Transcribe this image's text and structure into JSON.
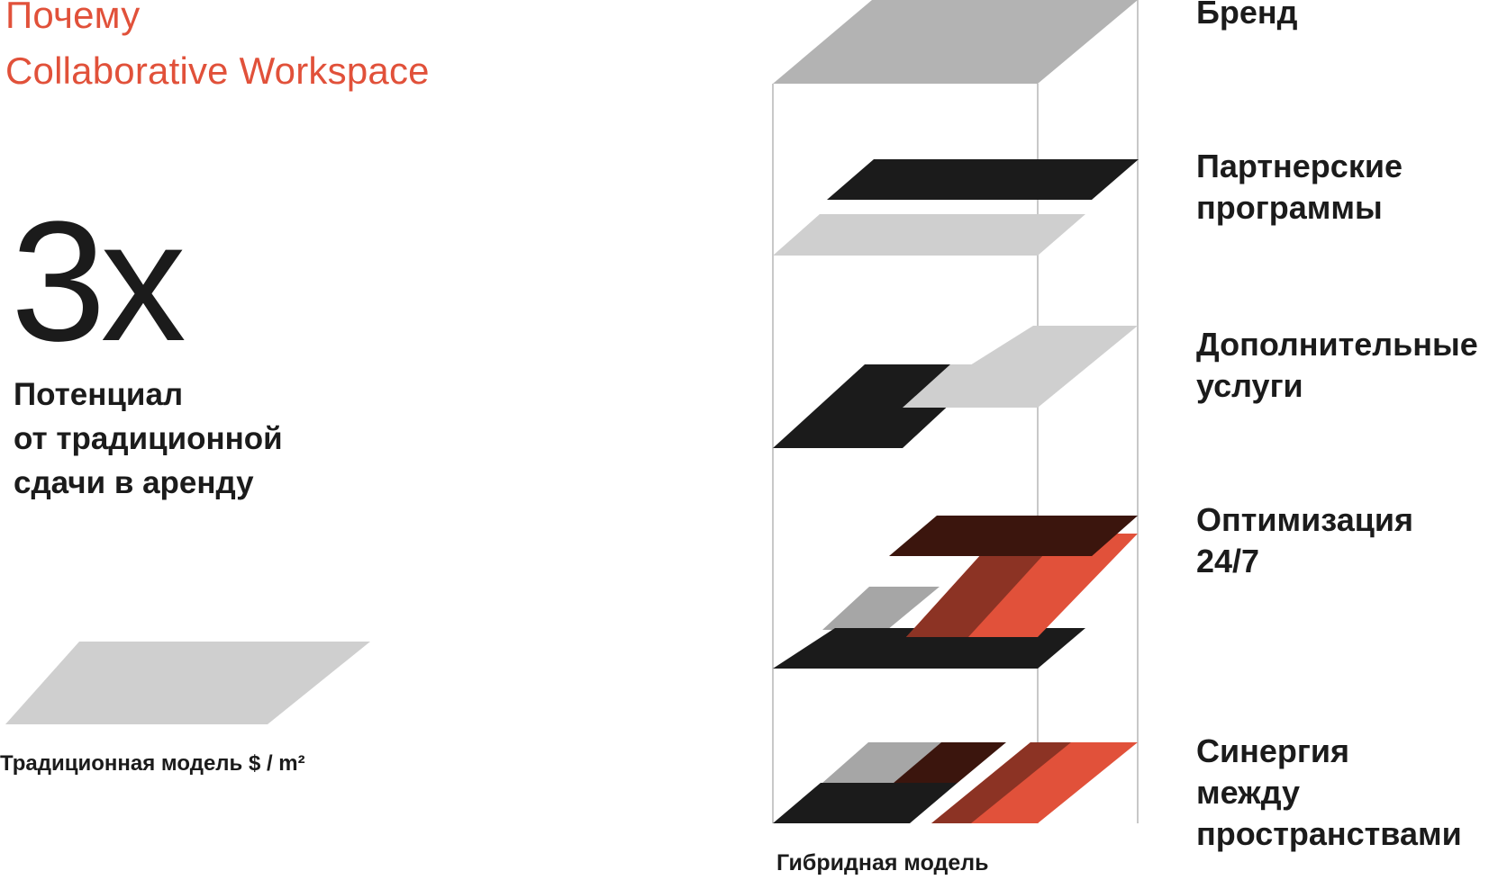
{
  "title": {
    "line1": "Почему",
    "line2": "Collaborative Workspace"
  },
  "highlight": {
    "value": "3x",
    "caption": [
      "Потенциал",
      "от традиционной",
      "сдачи в аренду"
    ]
  },
  "traditional_label": "Традиционная модель $ / m²",
  "hybrid_label": "Гибридная модель",
  "layers": [
    {
      "label": [
        "Бренд"
      ]
    },
    {
      "label": [
        "Партнерские",
        "программы"
      ]
    },
    {
      "label": [
        "Дополнительные",
        "услуги"
      ]
    },
    {
      "label": [
        "Оптимизация",
        "24/7"
      ]
    },
    {
      "label": [
        "Синергия",
        "между",
        "пространствами"
      ]
    }
  ],
  "colors": {
    "accent": "#e1513a",
    "dark": "#1b1b1b",
    "gray": "#b3b3b3",
    "light_gray": "#cfcfcf",
    "mid_gray": "#a6a6a6",
    "brown": "#3b150d",
    "red_brown": "#8c3324",
    "frame": "#c8c8c8"
  }
}
